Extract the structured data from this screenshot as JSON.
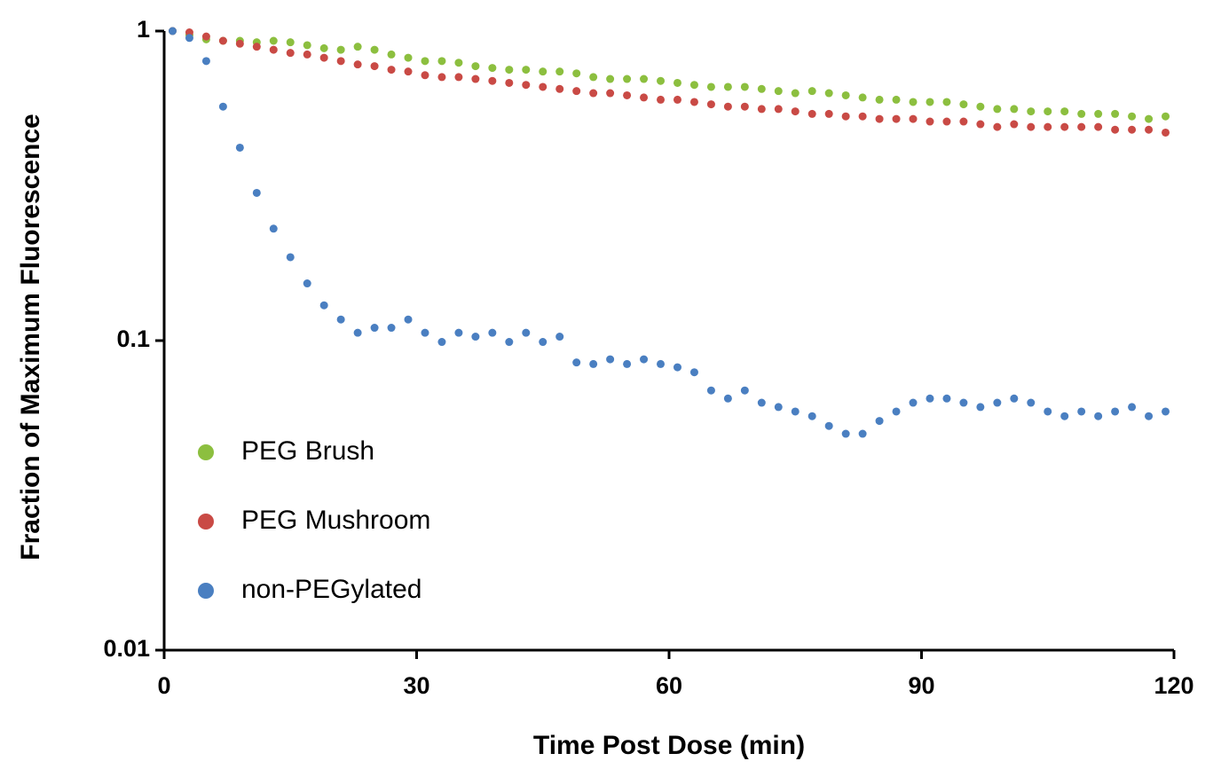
{
  "chart_data": {
    "type": "scatter",
    "x_label": "Time Post Dose (min)",
    "y_label": "Fraction of Maximum Fluorescence",
    "xlim": [
      0,
      120
    ],
    "xticks": [
      0,
      30,
      60,
      90,
      120
    ],
    "ylim": [
      0.01,
      1
    ],
    "yticks": [
      0.01,
      0.1,
      1
    ],
    "y_scale": "log",
    "legend": "left",
    "grid": false,
    "x": [
      1,
      3,
      5,
      7,
      9,
      11,
      13,
      15,
      17,
      19,
      21,
      23,
      25,
      27,
      29,
      31,
      33,
      35,
      37,
      39,
      41,
      43,
      45,
      47,
      49,
      51,
      53,
      55,
      57,
      59,
      61,
      63,
      65,
      67,
      69,
      71,
      73,
      75,
      77,
      79,
      81,
      83,
      85,
      87,
      89,
      91,
      93,
      95,
      97,
      99,
      101,
      103,
      105,
      107,
      109,
      111,
      113,
      115,
      117,
      119
    ],
    "series": [
      {
        "name": "PEG Brush",
        "color": "#8cbf3f",
        "values": [
          1.0,
          0.97,
          0.94,
          0.93,
          0.93,
          0.92,
          0.93,
          0.92,
          0.9,
          0.88,
          0.87,
          0.89,
          0.87,
          0.84,
          0.82,
          0.8,
          0.8,
          0.79,
          0.77,
          0.76,
          0.75,
          0.75,
          0.74,
          0.74,
          0.73,
          0.71,
          0.7,
          0.7,
          0.7,
          0.69,
          0.68,
          0.67,
          0.66,
          0.66,
          0.66,
          0.65,
          0.64,
          0.63,
          0.64,
          0.63,
          0.62,
          0.61,
          0.6,
          0.6,
          0.59,
          0.59,
          0.59,
          0.58,
          0.57,
          0.56,
          0.56,
          0.55,
          0.55,
          0.55,
          0.54,
          0.54,
          0.54,
          0.53,
          0.52,
          0.53
        ]
      },
      {
        "name": "PEG Mushroom",
        "color": "#c94a45",
        "values": [
          1.0,
          0.99,
          0.96,
          0.93,
          0.91,
          0.89,
          0.87,
          0.85,
          0.84,
          0.82,
          0.8,
          0.78,
          0.77,
          0.75,
          0.74,
          0.72,
          0.71,
          0.71,
          0.7,
          0.69,
          0.68,
          0.67,
          0.66,
          0.65,
          0.64,
          0.63,
          0.63,
          0.62,
          0.61,
          0.6,
          0.6,
          0.59,
          0.58,
          0.57,
          0.57,
          0.56,
          0.56,
          0.55,
          0.54,
          0.54,
          0.53,
          0.53,
          0.52,
          0.52,
          0.52,
          0.51,
          0.51,
          0.51,
          0.5,
          0.49,
          0.5,
          0.49,
          0.49,
          0.49,
          0.49,
          0.49,
          0.48,
          0.48,
          0.48,
          0.47
        ]
      },
      {
        "name": "non-PEGylated",
        "color": "#4a7fc1",
        "values": [
          1,
          0.95,
          0.8,
          0.57,
          0.42,
          0.3,
          0.23,
          0.186,
          0.153,
          0.13,
          0.117,
          0.106,
          0.11,
          0.11,
          0.117,
          0.106,
          0.099,
          0.106,
          0.103,
          0.106,
          0.099,
          0.106,
          0.099,
          0.103,
          0.085,
          0.084,
          0.087,
          0.084,
          0.087,
          0.084,
          0.082,
          0.079,
          0.069,
          0.065,
          0.069,
          0.063,
          0.061,
          0.059,
          0.057,
          0.053,
          0.05,
          0.05,
          0.055,
          0.059,
          0.063,
          0.065,
          0.065,
          0.063,
          0.061,
          0.063,
          0.065,
          0.063,
          0.059,
          0.057,
          0.059,
          0.057,
          0.059,
          0.061,
          0.057,
          0.059
        ]
      }
    ]
  }
}
